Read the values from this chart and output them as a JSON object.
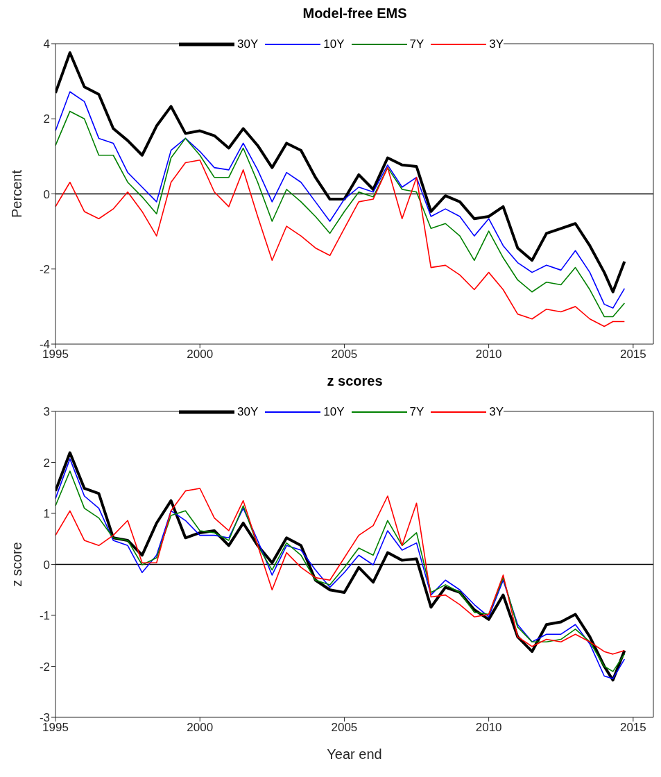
{
  "chart_data": [
    {
      "type": "line",
      "title": "Model-free EMS",
      "ylabel": "Percent",
      "xlim": [
        1995,
        2015.7
      ],
      "xticks": [
        1995,
        2000,
        2005,
        2010,
        2015
      ],
      "ylim": [
        -4,
        4
      ],
      "yticks": [
        -4,
        -2,
        0,
        2,
        4
      ],
      "grid": false,
      "legend": "top",
      "marker": "none",
      "line_style": "solid",
      "ref_lines": [
        {
          "axis": "y",
          "value": 0,
          "color": "#000000"
        }
      ],
      "x": [
        1995,
        1995.5,
        1996,
        1996.5,
        1997,
        1997.5,
        1998,
        1998.5,
        1999,
        1999.5,
        2000,
        2000.5,
        2001,
        2001.5,
        2002,
        2002.5,
        2003,
        2003.5,
        2004,
        2004.5,
        2005,
        2005.5,
        2006,
        2006.5,
        2007,
        2007.5,
        2008,
        2008.5,
        2009,
        2009.5,
        2010,
        2010.5,
        2011,
        2011.5,
        2012,
        2012.5,
        2013,
        2013.5,
        2014,
        2014.3,
        2014.7
      ],
      "series": [
        {
          "name": "30Y",
          "color": "#000000",
          "values": [
            2.69,
            3.76,
            2.85,
            2.65,
            1.74,
            1.42,
            1.03,
            1.81,
            2.33,
            1.61,
            1.68,
            1.55,
            1.22,
            1.74,
            1.29,
            0.7,
            1.35,
            1.16,
            0.44,
            -0.14,
            -0.14,
            0.51,
            0.12,
            0.96,
            0.77,
            0.73,
            -0.47,
            -0.05,
            -0.21,
            -0.66,
            -0.6,
            -0.34,
            -1.44,
            -1.77,
            -1.05,
            -0.92,
            -0.79,
            -1.38,
            -2.09,
            -2.61,
            -1.8
          ]
        },
        {
          "name": "10Y",
          "color": "#0000ff",
          "values": [
            1.68,
            2.72,
            2.46,
            1.48,
            1.35,
            0.57,
            0.18,
            -0.21,
            1.16,
            1.48,
            1.13,
            0.7,
            0.64,
            1.35,
            0.64,
            -0.21,
            0.57,
            0.31,
            -0.21,
            -0.73,
            -0.14,
            0.18,
            0.05,
            0.77,
            0.18,
            0.44,
            -0.6,
            -0.4,
            -0.6,
            -1.12,
            -0.66,
            -1.38,
            -1.83,
            -2.09,
            -1.9,
            -2.03,
            -1.51,
            -2.09,
            -2.94,
            -3.04,
            -2.52
          ]
        },
        {
          "name": "7Y",
          "color": "#008000",
          "values": [
            1.29,
            2.2,
            2.0,
            1.03,
            1.03,
            0.31,
            -0.08,
            -0.53,
            0.96,
            1.48,
            1.03,
            0.44,
            0.44,
            1.22,
            0.31,
            -0.73,
            0.12,
            -0.21,
            -0.6,
            -1.05,
            -0.47,
            0.05,
            -0.08,
            0.7,
            0.12,
            0.05,
            -0.92,
            -0.79,
            -1.12,
            -1.77,
            -0.99,
            -1.7,
            -2.29,
            -2.61,
            -2.35,
            -2.42,
            -1.96,
            -2.55,
            -3.27,
            -3.27,
            -2.91
          ]
        },
        {
          "name": "3Y",
          "color": "#ff0000",
          "values": [
            -0.34,
            0.31,
            -0.47,
            -0.66,
            -0.4,
            0.05,
            -0.47,
            -1.12,
            0.31,
            0.83,
            0.9,
            0.05,
            -0.34,
            0.64,
            -0.6,
            -1.77,
            -0.86,
            -1.12,
            -1.44,
            -1.64,
            -0.92,
            -0.21,
            -0.14,
            0.7,
            -0.66,
            0.44,
            -1.96,
            -1.9,
            -2.16,
            -2.55,
            -2.09,
            -2.55,
            -3.2,
            -3.33,
            -3.07,
            -3.14,
            -3.0,
            -3.33,
            -3.53,
            -3.4,
            -3.4
          ]
        }
      ]
    },
    {
      "type": "line",
      "title": "z scores",
      "xlabel": "Year end",
      "ylabel": "z score",
      "xlim": [
        1995,
        2015.7
      ],
      "xticks": [
        1995,
        2000,
        2005,
        2010,
        2015
      ],
      "ylim": [
        -3,
        3
      ],
      "yticks": [
        -3,
        -2,
        -1,
        0,
        1,
        2,
        3
      ],
      "grid": false,
      "legend": "top",
      "marker": "none",
      "line_style": "solid",
      "ref_lines": [
        {
          "axis": "y",
          "value": 0,
          "color": "#000000"
        }
      ],
      "x": [
        1995,
        1995.5,
        1996,
        1996.5,
        1997,
        1997.5,
        1998,
        1998.5,
        1999,
        1999.5,
        2000,
        2000.5,
        2001,
        2001.5,
        2002,
        2002.5,
        2003,
        2003.5,
        2004,
        2004.5,
        2005,
        2005.5,
        2006,
        2006.5,
        2007,
        2007.5,
        2008,
        2008.5,
        2009,
        2009.5,
        2010,
        2010.5,
        2011,
        2011.5,
        2012,
        2012.5,
        2013,
        2013.5,
        2014,
        2014.3,
        2014.7
      ],
      "series": [
        {
          "name": "30Y",
          "color": "#000000",
          "values": [
            1.44,
            2.19,
            1.49,
            1.39,
            0.52,
            0.47,
            0.18,
            0.81,
            1.25,
            0.52,
            0.62,
            0.66,
            0.37,
            0.81,
            0.37,
            0.03,
            0.52,
            0.37,
            -0.31,
            -0.5,
            -0.55,
            -0.06,
            -0.35,
            0.23,
            0.08,
            0.11,
            -0.84,
            -0.45,
            -0.55,
            -0.89,
            -1.08,
            -0.6,
            -1.42,
            -1.71,
            -1.18,
            -1.13,
            -0.98,
            -1.42,
            -2.0,
            -2.27,
            -1.69
          ]
        },
        {
          "name": "10Y",
          "color": "#0000ff",
          "values": [
            1.29,
            2.07,
            1.34,
            1.1,
            0.47,
            0.37,
            -0.16,
            0.18,
            1.05,
            0.86,
            0.57,
            0.57,
            0.52,
            1.1,
            0.47,
            -0.21,
            0.37,
            0.28,
            -0.11,
            -0.45,
            -0.16,
            0.18,
            -0.01,
            0.66,
            0.28,
            0.42,
            -0.6,
            -0.31,
            -0.5,
            -0.79,
            -1.03,
            -0.31,
            -1.18,
            -1.52,
            -1.37,
            -1.37,
            -1.18,
            -1.56,
            -2.19,
            -2.24,
            -1.86
          ]
        },
        {
          "name": "7Y",
          "color": "#008000",
          "values": [
            1.15,
            1.83,
            1.1,
            0.91,
            0.52,
            0.47,
            -0.01,
            0.13,
            0.96,
            1.05,
            0.66,
            0.62,
            0.47,
            1.15,
            0.37,
            -0.11,
            0.42,
            0.18,
            -0.31,
            -0.4,
            -0.06,
            0.32,
            0.18,
            0.86,
            0.37,
            0.62,
            -0.55,
            -0.4,
            -0.55,
            -0.94,
            -0.98,
            -0.26,
            -1.23,
            -1.52,
            -1.52,
            -1.47,
            -1.27,
            -1.52,
            -2.0,
            -2.1,
            -1.76
          ]
        },
        {
          "name": "3Y",
          "color": "#ff0000",
          "values": [
            0.57,
            1.05,
            0.47,
            0.37,
            0.57,
            0.86,
            0.03,
            0.03,
            1.05,
            1.44,
            1.49,
            0.91,
            0.66,
            1.25,
            0.37,
            -0.5,
            0.23,
            -0.06,
            -0.26,
            -0.31,
            0.13,
            0.57,
            0.76,
            1.34,
            0.37,
            1.2,
            -0.64,
            -0.6,
            -0.79,
            -1.03,
            -0.98,
            -0.21,
            -1.42,
            -1.61,
            -1.47,
            -1.52,
            -1.37,
            -1.52,
            -1.71,
            -1.76,
            -1.69
          ]
        }
      ]
    }
  ]
}
